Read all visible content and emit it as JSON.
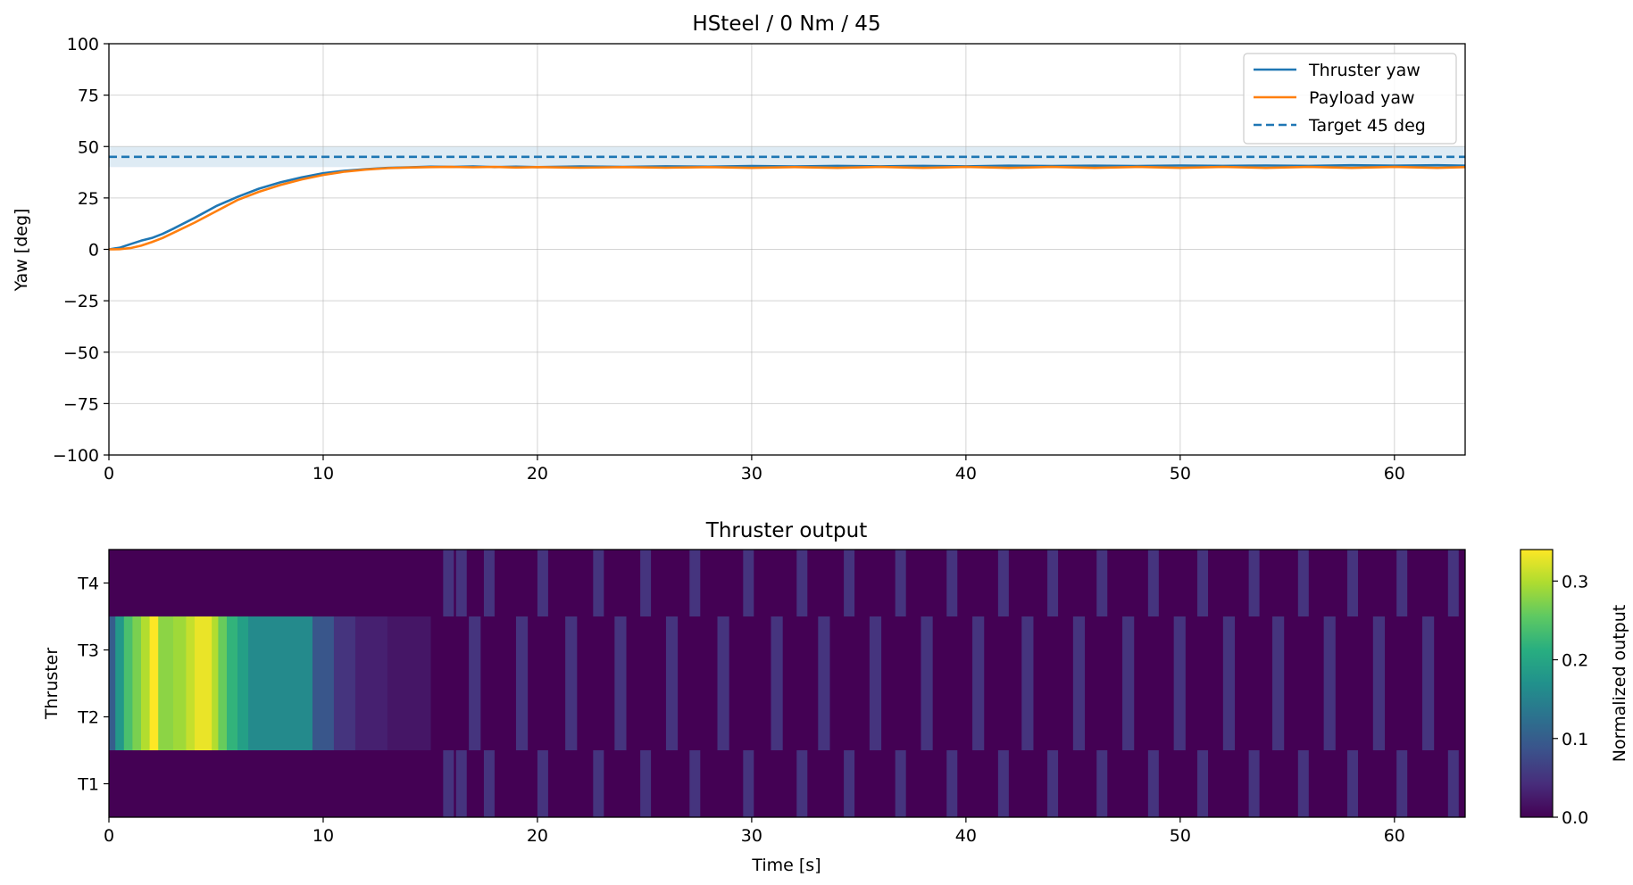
{
  "chart_data": [
    {
      "type": "line",
      "title": "HSteel / 0 Nm / 45",
      "xlabel": "",
      "ylabel": "Yaw [deg]",
      "xlim": [
        0,
        63.3
      ],
      "ylim": [
        -100,
        100
      ],
      "xticks": [
        0,
        10,
        20,
        30,
        40,
        50,
        60
      ],
      "xtick_labels": [
        "0",
        "10",
        "20",
        "30",
        "40",
        "50",
        "60"
      ],
      "yticks": [
        100,
        75,
        50,
        25,
        0,
        -25,
        -50,
        -75,
        -100
      ],
      "ytick_labels": [
        "100",
        "75",
        "50",
        "25",
        "0",
        "−25",
        "−50",
        "−75",
        "−100"
      ],
      "grid": true,
      "legend_position": "top-right",
      "tolerance_band": [
        40,
        50
      ],
      "series": [
        {
          "name": "Thruster yaw",
          "color": "#1f77b4",
          "style": "solid",
          "x": [
            0,
            0.5,
            1,
            1.5,
            2,
            2.5,
            3,
            4,
            5,
            6,
            7,
            8,
            9,
            10,
            11,
            12,
            13,
            14,
            15,
            16,
            17,
            18,
            19,
            20,
            22,
            24,
            26,
            28,
            30,
            32,
            34,
            36,
            38,
            40,
            42,
            44,
            46,
            48,
            50,
            52,
            54,
            56,
            58,
            60,
            62,
            63.3
          ],
          "y": [
            0,
            0.8,
            2.5,
            4.2,
            5.5,
            7.5,
            10.0,
            15.3,
            21.0,
            25.5,
            29.5,
            32.6,
            35.0,
            37.0,
            38.2,
            39.0,
            39.6,
            39.9,
            40.2,
            40.1,
            40.3,
            40.0,
            40.2,
            40.0,
            40.3,
            40.1,
            40.4,
            40.2,
            40.5,
            40.3,
            40.6,
            40.4,
            40.6,
            40.4,
            40.7,
            40.5,
            40.7,
            40.5,
            40.8,
            40.6,
            40.8,
            40.6,
            40.9,
            40.7,
            40.9,
            40.7
          ]
        },
        {
          "name": "Payload yaw",
          "color": "#ff7f0e",
          "style": "solid",
          "x": [
            0,
            0.5,
            1,
            1.5,
            2,
            2.5,
            3,
            4,
            5,
            6,
            7,
            8,
            9,
            10,
            11,
            12,
            13,
            14,
            15,
            16,
            17,
            18,
            19,
            20,
            22,
            24,
            26,
            28,
            30,
            32,
            34,
            36,
            38,
            40,
            42,
            44,
            46,
            48,
            50,
            52,
            54,
            56,
            58,
            60,
            62,
            63.3
          ],
          "y": [
            0,
            0.1,
            0.6,
            1.8,
            3.5,
            5.5,
            8.0,
            13.0,
            18.5,
            24.0,
            28.0,
            31.3,
            34.0,
            36.2,
            37.8,
            38.8,
            39.5,
            39.8,
            40.0,
            40.1,
            39.9,
            40.1,
            39.8,
            40.0,
            39.7,
            40.0,
            39.7,
            40.0,
            39.6,
            40.0,
            39.6,
            40.1,
            39.6,
            40.1,
            39.6,
            40.1,
            39.6,
            40.1,
            39.6,
            40.1,
            39.6,
            40.1,
            39.6,
            40.1,
            39.6,
            40.0
          ]
        },
        {
          "name": "Target 45 deg",
          "color": "#1f77b4",
          "style": "dashed",
          "x": [
            0,
            63.3
          ],
          "y": [
            45,
            45
          ]
        }
      ]
    },
    {
      "type": "heatmap",
      "title": "Thruster output",
      "xlabel": "Time [s]",
      "ylabel": "Thruster",
      "xlim": [
        0,
        63.3
      ],
      "xticks": [
        0,
        10,
        20,
        30,
        40,
        50,
        60
      ],
      "xtick_labels": [
        "0",
        "10",
        "20",
        "30",
        "40",
        "50",
        "60"
      ],
      "rows": [
        "T4",
        "T3",
        "T2",
        "T1"
      ],
      "colormap": "viridis",
      "colorbar_label": "Normalized output",
      "colorbar_range": [
        0,
        0.34
      ],
      "colorbar_ticks": [
        0.0,
        0.1,
        0.2,
        0.3
      ],
      "colorbar_tick_labels": [
        "0.0",
        "0.1",
        "0.2",
        "0.3"
      ],
      "segments": {
        "T2_T3": [
          {
            "t0": 0,
            "t1": 0.3,
            "v": 0.1
          },
          {
            "t0": 0.3,
            "t1": 0.7,
            "v": 0.18
          },
          {
            "t0": 0.7,
            "t1": 1.1,
            "v": 0.24
          },
          {
            "t0": 1.1,
            "t1": 1.5,
            "v": 0.27
          },
          {
            "t0": 1.5,
            "t1": 1.9,
            "v": 0.3
          },
          {
            "t0": 1.9,
            "t1": 2.3,
            "v": 0.34
          },
          {
            "t0": 2.3,
            "t1": 3.0,
            "v": 0.28
          },
          {
            "t0": 3.0,
            "t1": 3.6,
            "v": 0.29
          },
          {
            "t0": 3.6,
            "t1": 4.0,
            "v": 0.31
          },
          {
            "t0": 4.0,
            "t1": 4.8,
            "v": 0.33
          },
          {
            "t0": 4.8,
            "t1": 5.1,
            "v": 0.3
          },
          {
            "t0": 5.1,
            "t1": 5.5,
            "v": 0.26
          },
          {
            "t0": 5.5,
            "t1": 6.0,
            "v": 0.22
          },
          {
            "t0": 6.0,
            "t1": 6.5,
            "v": 0.19
          },
          {
            "t0": 6.5,
            "t1": 9.5,
            "v": 0.16
          },
          {
            "t0": 9.5,
            "t1": 10.5,
            "v": 0.09
          },
          {
            "t0": 10.5,
            "t1": 11.5,
            "v": 0.05
          },
          {
            "t0": 11.5,
            "t1": 13.0,
            "v": 0.03
          },
          {
            "t0": 13.0,
            "t1": 15.0,
            "v": 0.02
          }
        ],
        "T1_T4_pulses": [
          15.6,
          16.2,
          17.5,
          20.0,
          22.6,
          24.8,
          27.1,
          29.6,
          32.1,
          34.3,
          36.7,
          39.1,
          41.5,
          43.8,
          46.1,
          48.5,
          50.8,
          53.2,
          55.5,
          57.8,
          60.1,
          62.5
        ],
        "T2_T3_pulses": [
          16.8,
          19.0,
          21.3,
          23.6,
          26.0,
          28.4,
          30.9,
          33.1,
          35.5,
          37.9,
          40.3,
          42.6,
          45.0,
          47.3,
          49.7,
          52.0,
          54.3,
          56.7,
          59.0,
          61.3
        ]
      }
    }
  ]
}
